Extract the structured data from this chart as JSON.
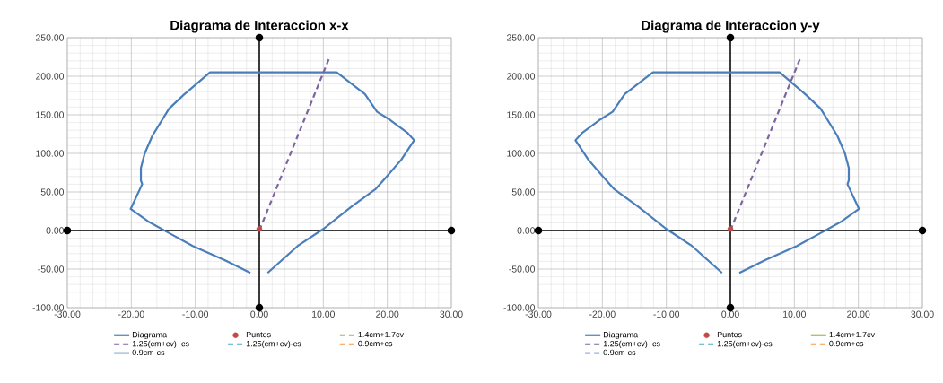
{
  "chart_data": [
    {
      "type": "line",
      "title": "Diagrama de Interaccion x-x",
      "xlim": [
        -30,
        30
      ],
      "ylim": [
        -100,
        250
      ],
      "xticks": [
        {
          "value": -30,
          "label": "-30.00"
        },
        {
          "value": -20,
          "label": "-20.00"
        },
        {
          "value": -10,
          "label": "-10.00"
        },
        {
          "value": 0,
          "label": "0.00"
        },
        {
          "value": 10,
          "label": "10.00"
        },
        {
          "value": 20,
          "label": "20.00"
        },
        {
          "value": 30,
          "label": "30.00"
        }
      ],
      "yticks": [
        {
          "value": -100,
          "label": "-100.00"
        },
        {
          "value": -50,
          "label": "-50.00"
        },
        {
          "value": 0,
          "label": "0.00"
        },
        {
          "value": 50,
          "label": "50.00"
        },
        {
          "value": 100,
          "label": "100.00"
        },
        {
          "value": 150,
          "label": "150.00"
        },
        {
          "value": 200,
          "label": "200.00"
        },
        {
          "value": 250,
          "label": "250.00"
        }
      ],
      "grid": true,
      "legend": "bottom",
      "series": [
        {
          "color": "#000000",
          "line_style": "solid",
          "marker": "circle",
          "x": [
            -30,
            30
          ],
          "values": [
            0,
            0
          ]
        },
        {
          "color": "#000000",
          "line_style": "solid",
          "marker": "circle",
          "x": [
            0,
            0
          ],
          "values": [
            -100,
            250
          ]
        },
        {
          "name": "Diagrama",
          "color": "#4a7ebb",
          "line_style": "solid",
          "x": [
            -1.4,
            -5.5,
            -10.4,
            -14.6,
            -17.4,
            -20.1,
            -18.3,
            -18.5,
            -18.5,
            -17.9,
            -16.7,
            -14.1,
            -11.8,
            -7.7,
            12.1,
            16.5,
            18.4,
            20.5,
            23.1,
            24.2,
            22.2,
            19.8,
            18.2,
            14.4,
            10,
            6,
            1.3
          ],
          "values": [
            -55,
            -38,
            -20,
            -1,
            12,
            28,
            60,
            65,
            81,
            100,
            123,
            158,
            176,
            205,
            205,
            177,
            154,
            143,
            127,
            117,
            92,
            69,
            54,
            31,
            2,
            -20,
            -55
          ]
        },
        {
          "name": "Puntos",
          "color": "#be4b48",
          "type": "scatter",
          "marker": "circle",
          "x": [
            0
          ],
          "values": [
            2
          ]
        },
        {
          "name": "1.4cm+1.7cv",
          "color": "#9bbb59",
          "line_style": "dashed"
        },
        {
          "name": "1.25(cm+cv)+cs",
          "color": "#7e649e",
          "line_style": "dashed",
          "x": [
            0,
            11
          ],
          "values": [
            0,
            225
          ]
        },
        {
          "name": "1.25(cm+cv)-cs",
          "color": "#4bacc6",
          "line_style": "dashed"
        },
        {
          "name": "0.9cm+cs",
          "color": "#f79646",
          "line_style": "dashed"
        },
        {
          "name": "0.9cm-cs",
          "color": "#95b3d7",
          "line_style": "solid"
        }
      ]
    },
    {
      "type": "line",
      "title": "Diagrama de Interaccion y-y",
      "xlim": [
        -30,
        30
      ],
      "ylim": [
        -100,
        250
      ],
      "xticks": [
        {
          "value": -30,
          "label": "-30.00"
        },
        {
          "value": -20,
          "label": "-20.00"
        },
        {
          "value": -10,
          "label": "-10.00"
        },
        {
          "value": 0,
          "label": "0.00"
        },
        {
          "value": 10,
          "label": "10.00"
        },
        {
          "value": 20,
          "label": "20.00"
        },
        {
          "value": 30,
          "label": "30.00"
        }
      ],
      "yticks": [
        {
          "value": -100,
          "label": "-100.00"
        },
        {
          "value": -50,
          "label": "-50.00"
        },
        {
          "value": 0,
          "label": "0.00"
        },
        {
          "value": 50,
          "label": "50.00"
        },
        {
          "value": 100,
          "label": "100.00"
        },
        {
          "value": 150,
          "label": "150.00"
        },
        {
          "value": 200,
          "label": "200.00"
        },
        {
          "value": 250,
          "label": "250.00"
        }
      ],
      "grid": true,
      "legend": "bottom",
      "series": [
        {
          "color": "#000000",
          "line_style": "solid",
          "marker": "circle",
          "x": [
            -30,
            30
          ],
          "values": [
            0,
            0
          ]
        },
        {
          "color": "#000000",
          "line_style": "solid",
          "marker": "circle",
          "x": [
            0,
            0
          ],
          "values": [
            -100,
            250
          ]
        },
        {
          "name": "Diagrama",
          "color": "#4a7ebb",
          "line_style": "solid",
          "x": [
            1.4,
            5.5,
            10.4,
            14.6,
            17.4,
            20.1,
            18.3,
            18.5,
            18.5,
            17.9,
            16.7,
            14.1,
            11.8,
            7.7,
            -12.1,
            -16.5,
            -18.4,
            -20.5,
            -23.1,
            -24.2,
            -22.2,
            -19.8,
            -18.2,
            -14.4,
            -10,
            -6,
            -1.3
          ],
          "values": [
            -55,
            -38,
            -20,
            -1,
            12,
            28,
            60,
            65,
            81,
            100,
            123,
            158,
            176,
            205,
            205,
            177,
            154,
            143,
            127,
            117,
            92,
            69,
            54,
            31,
            2,
            -20,
            -55
          ]
        },
        {
          "name": "Puntos",
          "color": "#be4b48",
          "type": "scatter",
          "marker": "circle",
          "x": [
            0
          ],
          "values": [
            2
          ]
        },
        {
          "name": "1.4cm+1.7cv",
          "color": "#9bbb59",
          "line_style": "solid"
        },
        {
          "name": "1.25(cm+cv)+cs",
          "color": "#7e649e",
          "line_style": "dashed",
          "x": [
            0,
            11
          ],
          "values": [
            0,
            225
          ]
        },
        {
          "name": "1.25(cm+cv)-cs",
          "color": "#4bacc6",
          "line_style": "dashed"
        },
        {
          "name": "0.9cm+cs",
          "color": "#f79646",
          "line_style": "dashed"
        },
        {
          "name": "0.9cm-cs",
          "color": "#95b3d7",
          "line_style": "dashed"
        }
      ]
    }
  ]
}
